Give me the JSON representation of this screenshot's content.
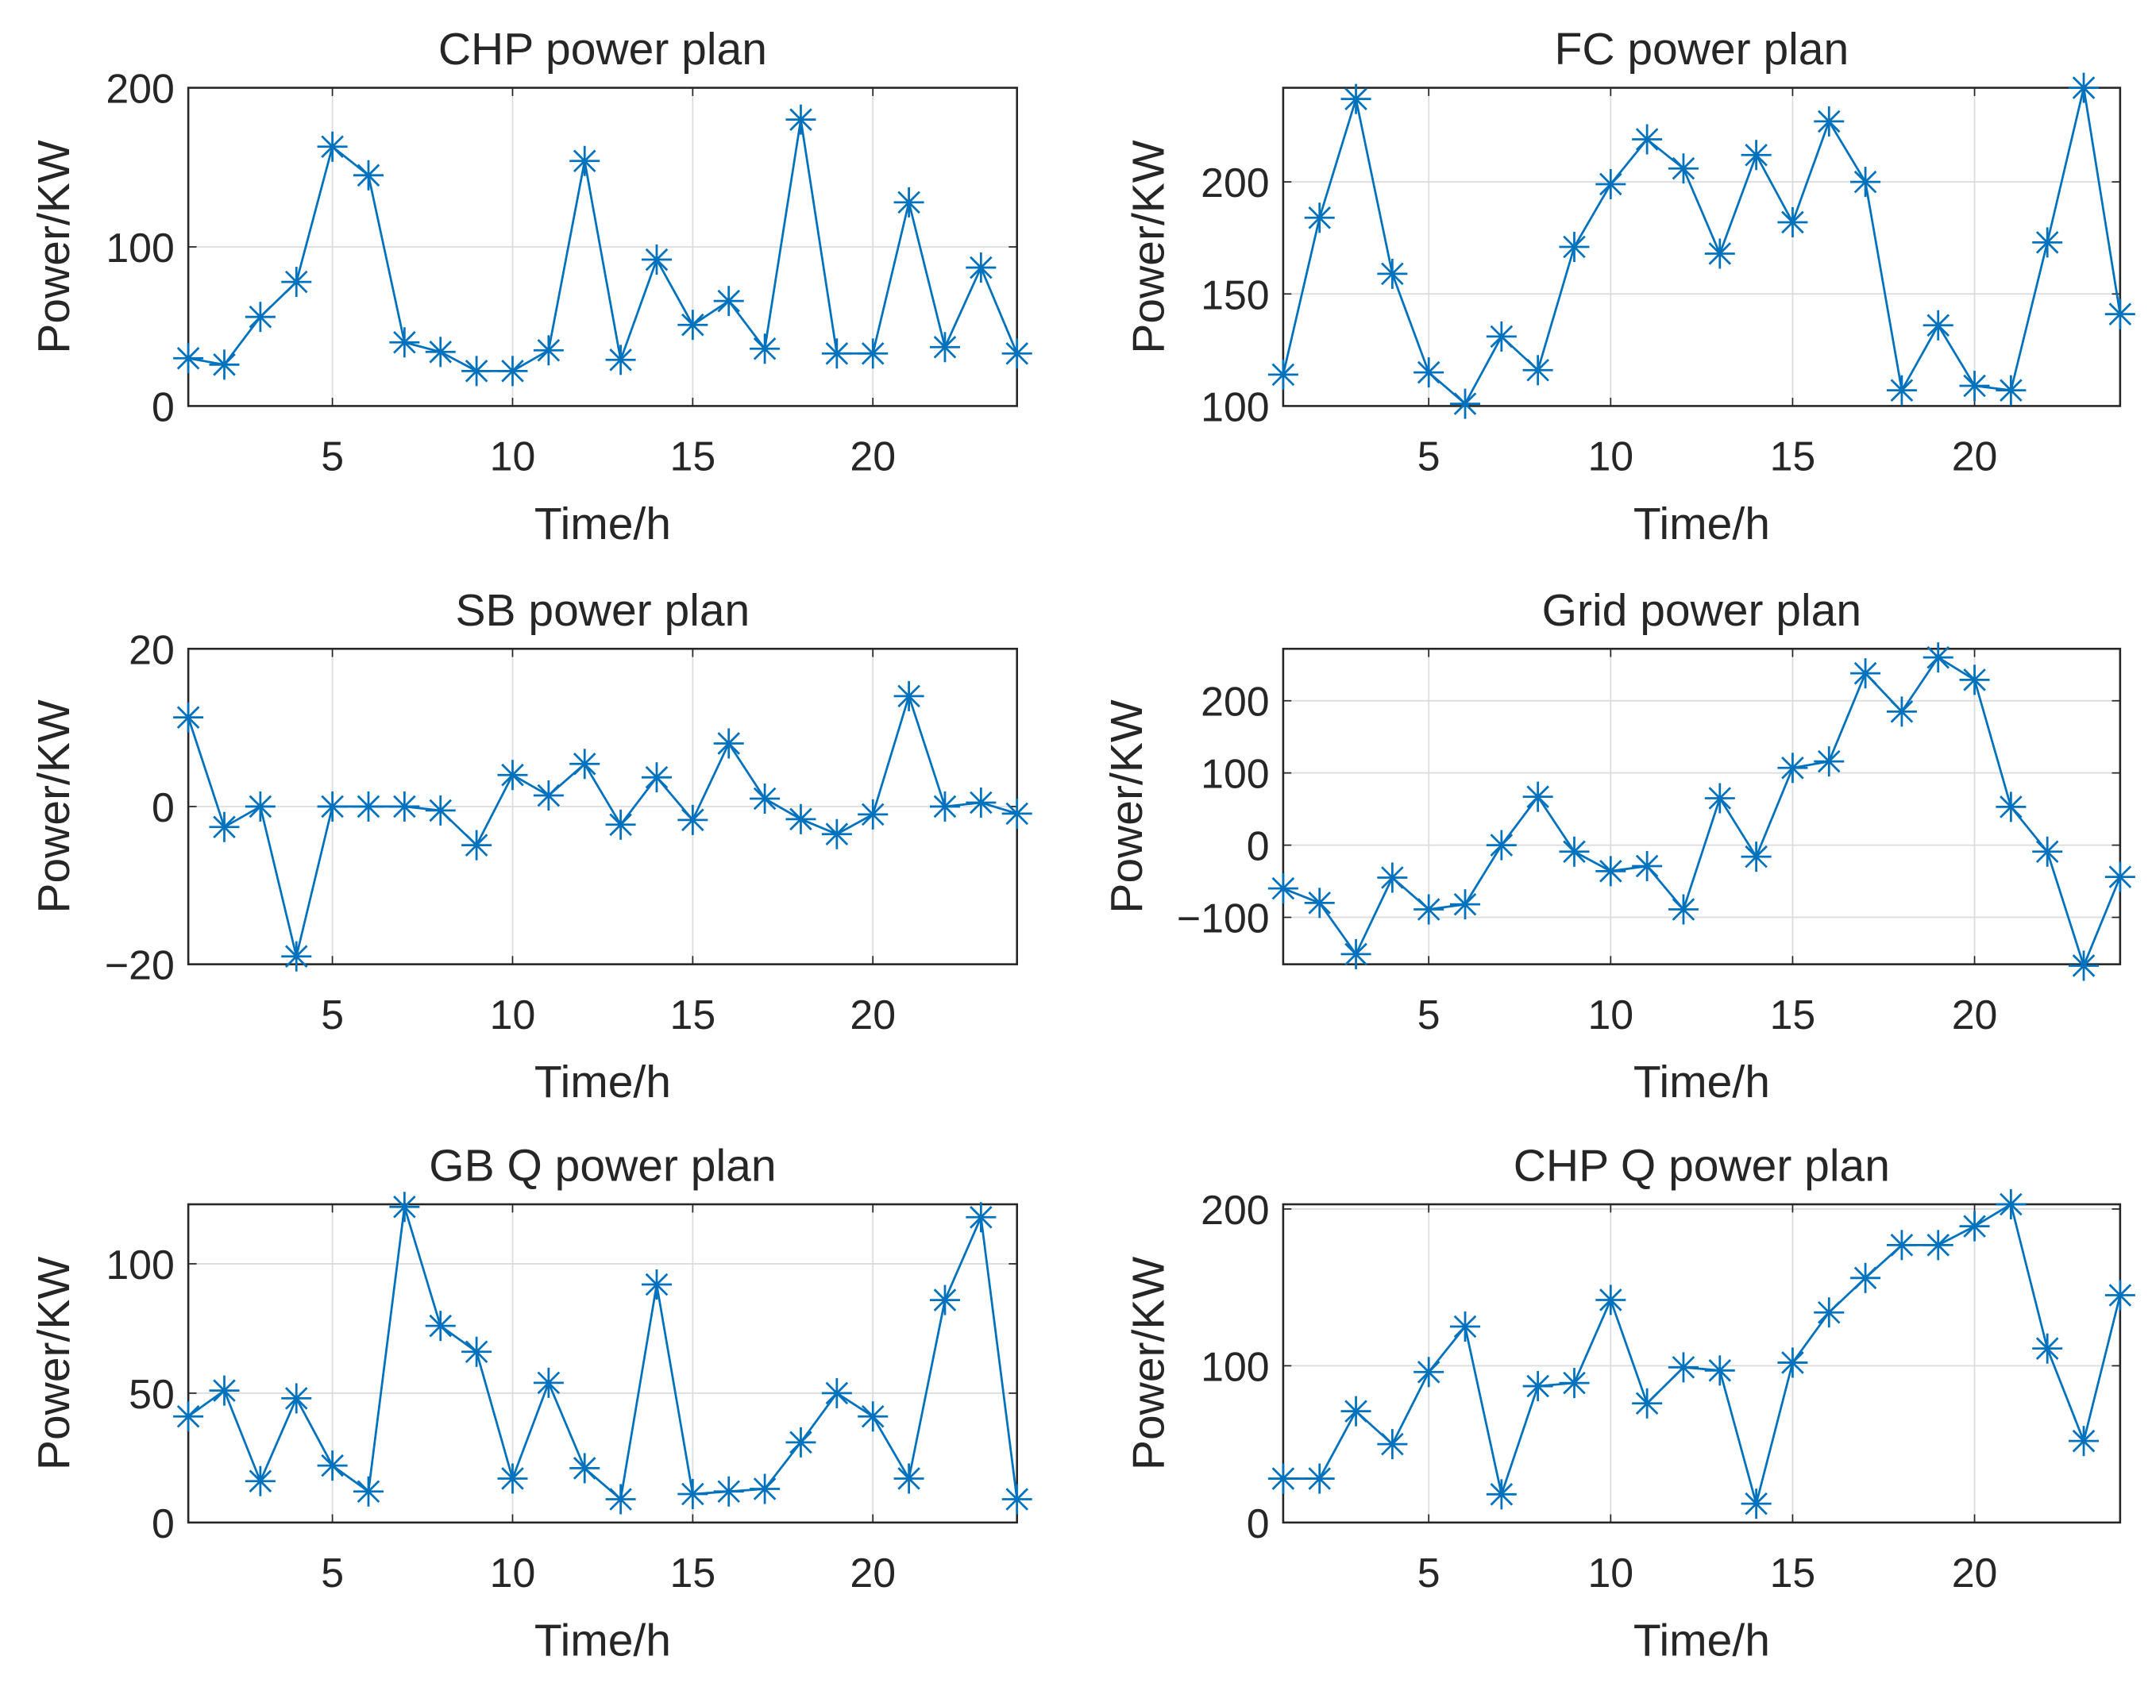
{
  "colors": {
    "line": "#0072BD",
    "grid": "#DCDCDC",
    "axis": "#262626"
  },
  "chart_data": [
    {
      "type": "line",
      "title": "CHP power plan",
      "xlabel": "Time/h",
      "ylabel": "Power/KW",
      "xlim": [
        1,
        24
      ],
      "ylim": [
        0,
        200
      ],
      "xticks": [
        5,
        10,
        15,
        20
      ],
      "yticks": [
        0,
        100,
        200
      ],
      "grid": true,
      "marker": "asterisk",
      "x": [
        1,
        2,
        3,
        4,
        5,
        6,
        7,
        8,
        9,
        10,
        11,
        12,
        13,
        14,
        15,
        16,
        17,
        18,
        19,
        20,
        21,
        22,
        23,
        24
      ],
      "values": [
        30,
        26,
        56,
        78,
        163,
        145,
        40,
        34,
        22,
        22,
        35,
        154,
        29,
        92,
        51,
        66,
        36,
        180,
        33,
        33,
        128,
        37,
        87,
        33
      ]
    },
    {
      "type": "line",
      "title": "FC power plan",
      "xlabel": "Time/h",
      "ylabel": "Power/KW",
      "xlim": [
        1,
        24
      ],
      "ylim": [
        100,
        242
      ],
      "xticks": [
        5,
        10,
        15,
        20
      ],
      "yticks": [
        100,
        150,
        200
      ],
      "grid": true,
      "marker": "asterisk",
      "x": [
        1,
        2,
        3,
        4,
        5,
        6,
        7,
        8,
        9,
        10,
        11,
        12,
        13,
        14,
        15,
        16,
        17,
        18,
        19,
        20,
        21,
        22,
        23,
        24
      ],
      "values": [
        114,
        184,
        237,
        159,
        115,
        101,
        131,
        116,
        171,
        199,
        219,
        206,
        168,
        212,
        182,
        227,
        200,
        107,
        136,
        109,
        107,
        173,
        242,
        141
      ]
    },
    {
      "type": "line",
      "title": "SB power plan",
      "xlabel": "Time/h",
      "ylabel": "Power/KW",
      "xlim": [
        1,
        24
      ],
      "ylim": [
        -20,
        20
      ],
      "xticks": [
        5,
        10,
        15,
        20
      ],
      "yticks": [
        -20,
        0,
        20
      ],
      "grid": true,
      "marker": "asterisk",
      "x": [
        1,
        2,
        3,
        4,
        5,
        6,
        7,
        8,
        9,
        10,
        11,
        12,
        13,
        14,
        15,
        16,
        17,
        18,
        19,
        20,
        21,
        22,
        23,
        24
      ],
      "values": [
        11.3,
        -2.6,
        0,
        -19,
        0,
        0,
        0,
        -0.5,
        -4.9,
        4,
        1.4,
        5.4,
        -2.3,
        3.7,
        -1.7,
        8,
        1,
        -1.6,
        -3.5,
        -1,
        14,
        0,
        0.5,
        -0.9
      ]
    },
    {
      "type": "line",
      "title": "Grid power plan",
      "xlabel": "Time/h",
      "ylabel": "Power/KW",
      "xlim": [
        1,
        24
      ],
      "ylim": [
        -165,
        272
      ],
      "xticks": [
        5,
        10,
        15,
        20
      ],
      "yticks": [
        -100,
        0,
        100,
        200
      ],
      "grid": true,
      "marker": "asterisk",
      "x": [
        1,
        2,
        3,
        4,
        5,
        6,
        7,
        8,
        9,
        10,
        11,
        12,
        13,
        14,
        15,
        16,
        17,
        18,
        19,
        20,
        21,
        22,
        23,
        24
      ],
      "values": [
        -60,
        -80,
        -151,
        -45,
        -89,
        -82,
        0,
        67,
        -9,
        -36,
        -29,
        -89,
        65,
        -16,
        107,
        116,
        238,
        185,
        260,
        229,
        53,
        -9,
        -167,
        -44
      ]
    },
    {
      "type": "line",
      "title": "GB Q power plan",
      "xlabel": "Time/h",
      "ylabel": "Power/KW",
      "xlim": [
        1,
        24
      ],
      "ylim": [
        0,
        123
      ],
      "xticks": [
        5,
        10,
        15,
        20
      ],
      "yticks": [
        0,
        50,
        100
      ],
      "grid": true,
      "marker": "asterisk",
      "x": [
        1,
        2,
        3,
        4,
        5,
        6,
        7,
        8,
        9,
        10,
        11,
        12,
        13,
        14,
        15,
        16,
        17,
        18,
        19,
        20,
        21,
        22,
        23,
        24
      ],
      "values": [
        41,
        51,
        16,
        48,
        22,
        12,
        122,
        76,
        66,
        17,
        54,
        21,
        9,
        92,
        11,
        12,
        13,
        31,
        50,
        41,
        17,
        86,
        118,
        9
      ]
    },
    {
      "type": "line",
      "title": "CHP Q power plan",
      "xlabel": "Time/h",
      "ylabel": "Power/KW",
      "xlim": [
        1,
        24
      ],
      "ylim": [
        0,
        203
      ],
      "xticks": [
        5,
        10,
        15,
        20
      ],
      "yticks": [
        0,
        100,
        200
      ],
      "grid": true,
      "marker": "asterisk",
      "x": [
        1,
        2,
        3,
        4,
        5,
        6,
        7,
        8,
        9,
        10,
        11,
        12,
        13,
        14,
        15,
        16,
        17,
        18,
        19,
        20,
        21,
        22,
        23,
        24
      ],
      "values": [
        28,
        28,
        71,
        50,
        96,
        125,
        18,
        87,
        89,
        142,
        76,
        99,
        97,
        12,
        102,
        134,
        156,
        177,
        177,
        189,
        203,
        111,
        52,
        145
      ]
    }
  ]
}
